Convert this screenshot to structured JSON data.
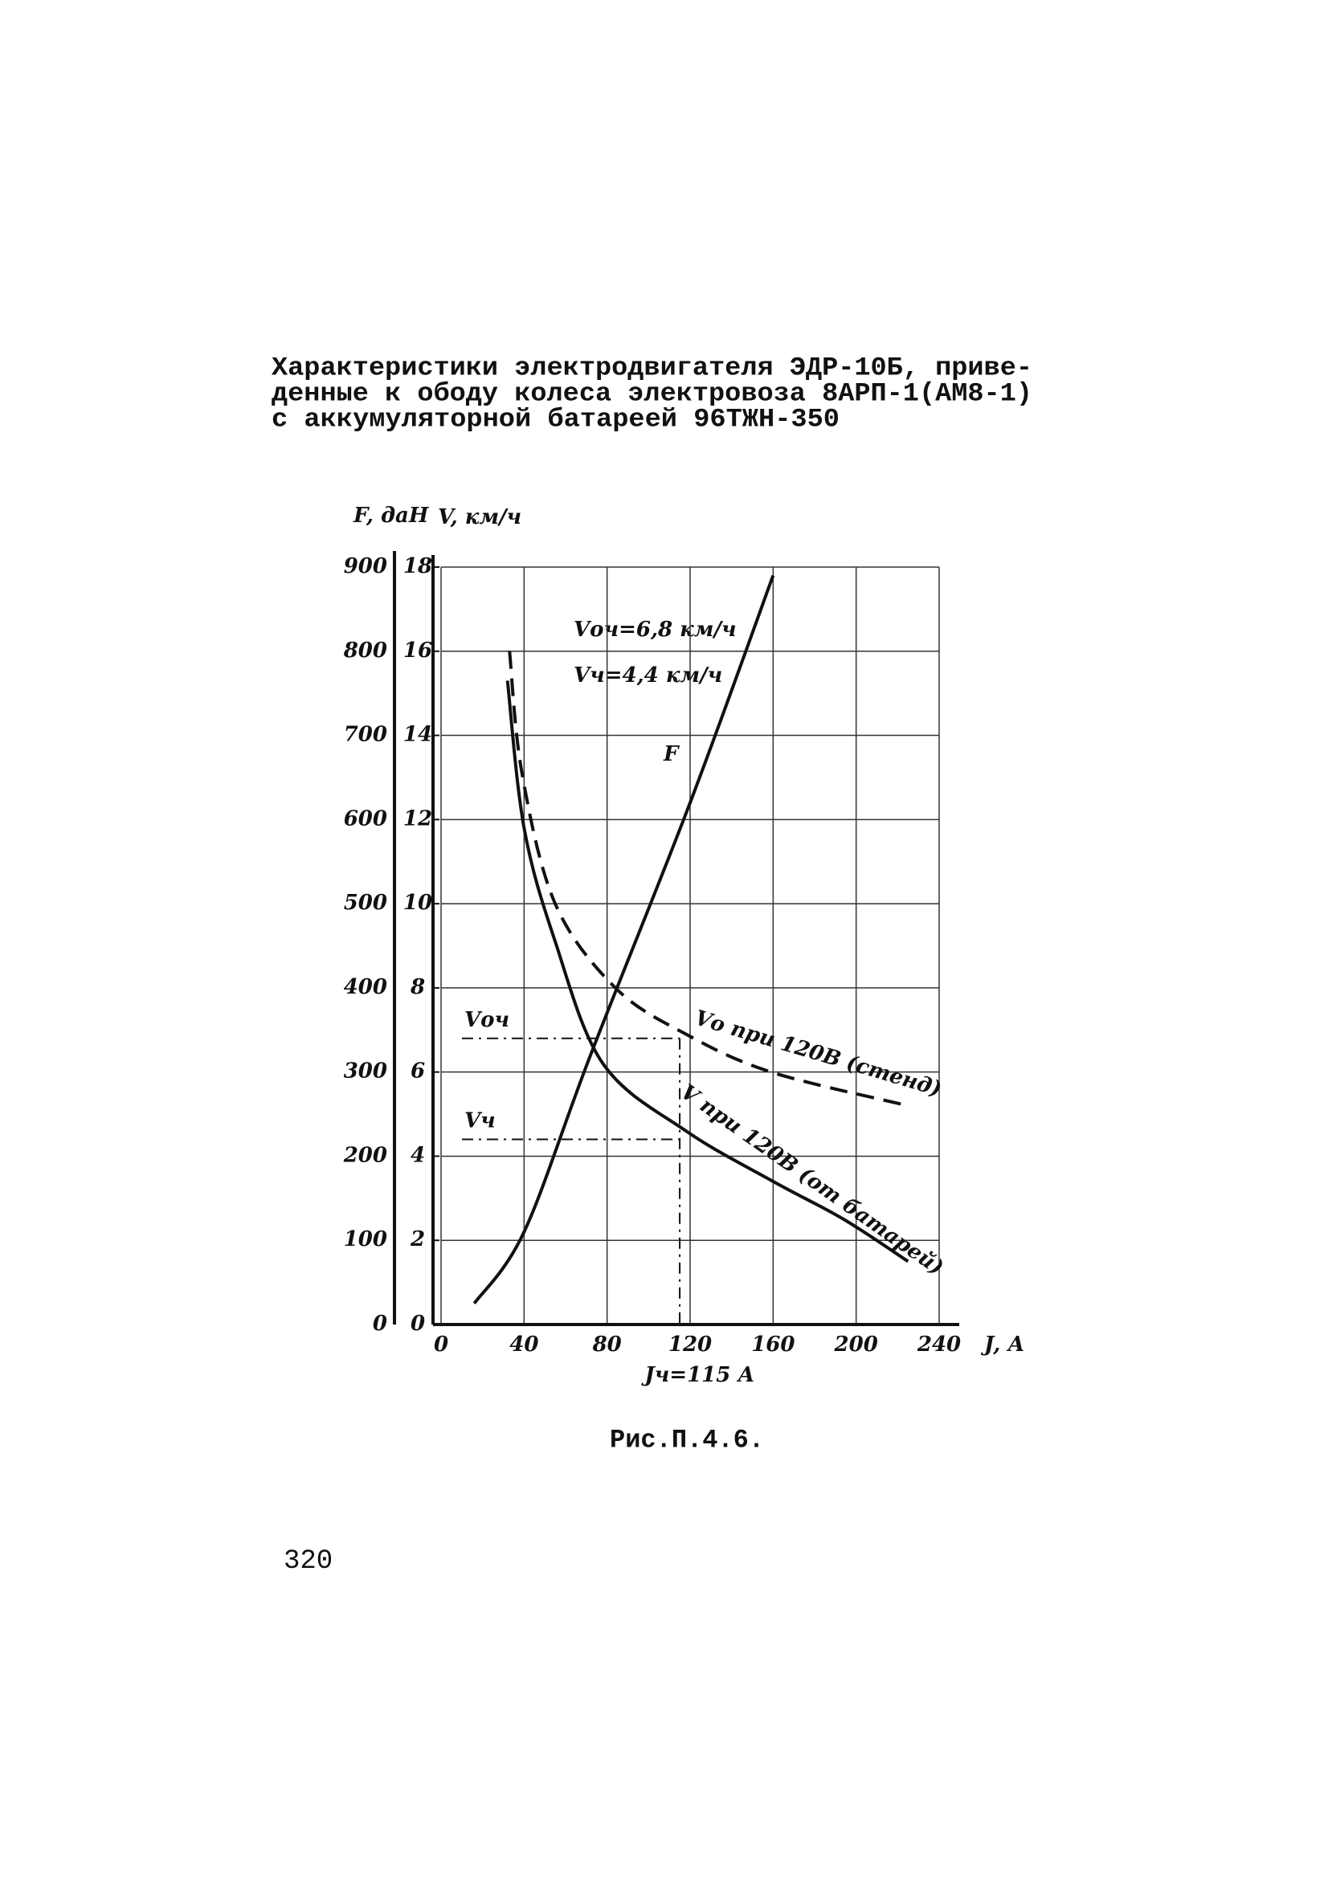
{
  "chart_data": {
    "type": "line",
    "title_lines": [
      "Характеристики электродвигателя ЭДР-10Б, приве-",
      "денные к ободу колеса электровоза 8АРП-1(АМ8-1)",
      "с аккумуляторной батареей 96ТЖН-350"
    ],
    "caption": "Рис.П.4.6.",
    "page_number": "320",
    "x_label": "J, А",
    "y_label": "F, даН",
    "y2_label": "V, км/ч",
    "xlim": [
      0,
      240
    ],
    "xticks": [
      0,
      40,
      80,
      120,
      160,
      200,
      240
    ],
    "ylim": [
      0,
      900
    ],
    "yticks": [
      0,
      100,
      200,
      300,
      400,
      500,
      600,
      700,
      800,
      900
    ],
    "y2lim": [
      0,
      18
    ],
    "y2ticks": [
      0,
      2,
      4,
      6,
      8,
      10,
      12,
      14,
      16,
      18
    ],
    "grid": true,
    "series": [
      {
        "name": "F",
        "color": "#111111",
        "style": "solid",
        "x": [
          16,
          40,
          72,
          120,
          160
        ],
        "values": [
          25,
          110,
          320,
          620,
          890
        ]
      },
      {
        "name": "V при 120В (от батарей)",
        "color": "#111111",
        "style": "solid",
        "axis": "y2",
        "x": [
          32,
          40,
          55,
          78,
          118,
          160,
          194,
          225
        ],
        "values": [
          15.3,
          11.8,
          9.1,
          6.2,
          4.6,
          3.4,
          2.5,
          1.5
        ]
      },
      {
        "name": "Vо при 120В (стенд)",
        "color": "#111111",
        "style": "dashed",
        "axis": "y2",
        "x": [
          33,
          39,
          55,
          84,
          118,
          159,
          225
        ],
        "values": [
          16.0,
          13.1,
          10.0,
          8.0,
          6.9,
          6.0,
          5.2
        ]
      }
    ],
    "reference_lines": [
      {
        "axis": "y2",
        "value": 6.8,
        "label": "Vоч"
      },
      {
        "axis": "y2",
        "value": 4.4,
        "label": "Vч"
      },
      {
        "axis": "x",
        "value": 115,
        "label": "Jч=115 А"
      }
    ],
    "annotations": [
      "Vоч=6,8 км/ч",
      "Vч=4,4 км/ч"
    ]
  }
}
